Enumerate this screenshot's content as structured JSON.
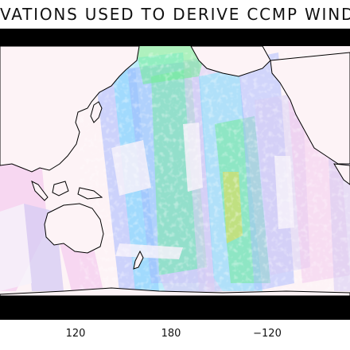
{
  "title": "VATIONS USED TO DERIVE CCMP WIND MAP",
  "x_ticks": [
    "120",
    "180",
    "−120"
  ],
  "colors": {
    "background": "#ffffff",
    "top_band": "#000000",
    "bottom_band": "#000000",
    "ocean_base": "#fdf3f6",
    "land": "#fdf3f6",
    "coastline": "#000000",
    "swath_lavender": "#d6ccf4",
    "swath_pink": "#f3c9ee",
    "swath_blue": "#9fb4ff",
    "swath_cyan": "#66e3ff",
    "swath_green": "#66ee8a",
    "swath_yellow": "#d4dc5e",
    "cloud_gap": "#f1eef8"
  }
}
